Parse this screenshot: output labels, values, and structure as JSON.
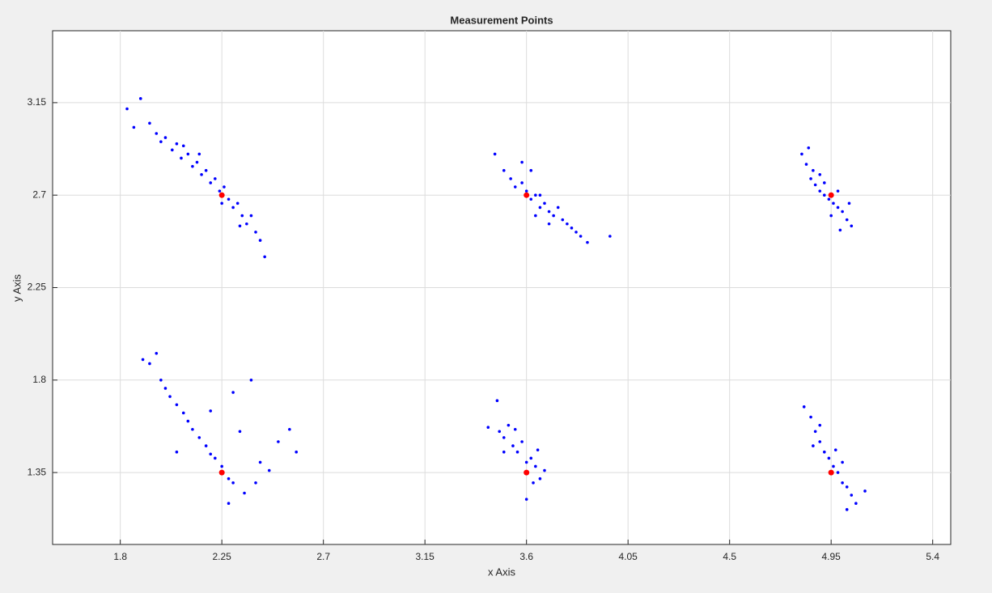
{
  "chart_data": {
    "type": "scatter",
    "title": "Measurement Points",
    "x_label": "x Axis",
    "y_label": "y Axis",
    "xlim": [
      1.5,
      5.48
    ],
    "ylim": [
      1.0,
      3.5
    ],
    "xticks": [
      1.8,
      2.25,
      2.7,
      3.15,
      3.6,
      4.05,
      4.5,
      4.95,
      5.4
    ],
    "yticks": [
      1.35,
      1.8,
      2.25,
      2.7,
      3.15
    ],
    "grid": true,
    "series": [
      {
        "color": "#0000ff",
        "marker_size": 1.8,
        "x": [
          1.83,
          1.86,
          1.89,
          1.93,
          1.96,
          1.98,
          2.0,
          2.03,
          2.05,
          2.07,
          2.1,
          2.12,
          2.14,
          2.16,
          2.18,
          2.2,
          2.22,
          2.24,
          2.26,
          2.28,
          2.3,
          2.32,
          2.34,
          2.36,
          2.38,
          2.4,
          2.42,
          2.44,
          2.08,
          2.15,
          2.25,
          2.33
        ],
        "values": [
          3.12,
          3.03,
          3.17,
          3.05,
          3.0,
          2.96,
          2.98,
          2.92,
          2.95,
          2.88,
          2.9,
          2.84,
          2.86,
          2.8,
          2.82,
          2.76,
          2.78,
          2.72,
          2.74,
          2.68,
          2.64,
          2.66,
          2.6,
          2.56,
          2.6,
          2.52,
          2.48,
          2.4,
          2.94,
          2.9,
          2.66,
          2.55
        ]
      },
      {
        "color": "#0000ff",
        "marker_size": 1.8,
        "x": [
          3.46,
          3.5,
          3.53,
          3.55,
          3.58,
          3.6,
          3.62,
          3.64,
          3.66,
          3.68,
          3.7,
          3.72,
          3.74,
          3.76,
          3.78,
          3.8,
          3.82,
          3.84,
          3.97,
          3.58,
          3.62,
          3.66,
          3.7,
          3.64,
          3.87
        ],
        "values": [
          2.9,
          2.82,
          2.78,
          2.74,
          2.76,
          2.72,
          2.68,
          2.7,
          2.64,
          2.66,
          2.62,
          2.6,
          2.64,
          2.58,
          2.56,
          2.54,
          2.52,
          2.5,
          2.5,
          2.86,
          2.82,
          2.7,
          2.56,
          2.6,
          2.47
        ]
      },
      {
        "color": "#0000ff",
        "marker_size": 1.8,
        "x": [
          4.82,
          4.85,
          4.84,
          4.87,
          4.86,
          4.88,
          4.9,
          4.9,
          4.92,
          4.94,
          4.96,
          4.98,
          5.0,
          5.02,
          5.04,
          4.95,
          4.92,
          4.98,
          5.03,
          4.99
        ],
        "values": [
          2.9,
          2.93,
          2.85,
          2.82,
          2.78,
          2.75,
          2.8,
          2.72,
          2.7,
          2.68,
          2.66,
          2.64,
          2.62,
          2.58,
          2.55,
          2.6,
          2.76,
          2.72,
          2.66,
          2.53
        ]
      },
      {
        "color": "#0000ff",
        "marker_size": 1.8,
        "x": [
          1.9,
          1.93,
          1.96,
          1.98,
          2.0,
          2.02,
          2.05,
          2.08,
          2.1,
          2.12,
          2.15,
          2.18,
          2.2,
          2.22,
          2.25,
          2.28,
          2.3,
          2.35,
          2.4,
          2.42,
          2.46,
          2.5,
          2.55,
          2.58,
          2.38,
          2.3,
          2.2,
          2.05,
          2.33,
          2.28
        ],
        "values": [
          1.9,
          1.88,
          1.93,
          1.8,
          1.76,
          1.72,
          1.68,
          1.64,
          1.6,
          1.56,
          1.52,
          1.48,
          1.44,
          1.42,
          1.38,
          1.32,
          1.3,
          1.25,
          1.3,
          1.4,
          1.36,
          1.5,
          1.56,
          1.45,
          1.8,
          1.74,
          1.65,
          1.45,
          1.55,
          1.2
        ]
      },
      {
        "color": "#0000ff",
        "marker_size": 1.8,
        "x": [
          3.43,
          3.47,
          3.48,
          3.5,
          3.52,
          3.54,
          3.56,
          3.58,
          3.6,
          3.62,
          3.64,
          3.66,
          3.68,
          3.6,
          3.63,
          3.55,
          3.65,
          3.5
        ],
        "values": [
          1.57,
          1.7,
          1.55,
          1.52,
          1.58,
          1.48,
          1.45,
          1.5,
          1.4,
          1.42,
          1.38,
          1.32,
          1.36,
          1.22,
          1.3,
          1.56,
          1.46,
          1.45
        ]
      },
      {
        "color": "#0000ff",
        "marker_size": 1.8,
        "x": [
          4.83,
          4.86,
          4.88,
          4.9,
          4.9,
          4.92,
          4.94,
          4.96,
          4.98,
          5.0,
          5.02,
          5.04,
          5.06,
          5.02,
          5.1,
          4.87,
          4.97,
          5.0
        ],
        "values": [
          1.67,
          1.62,
          1.55,
          1.5,
          1.58,
          1.45,
          1.42,
          1.38,
          1.35,
          1.3,
          1.28,
          1.24,
          1.2,
          1.17,
          1.26,
          1.48,
          1.46,
          1.4
        ]
      },
      {
        "color": "#ff0000",
        "marker_size": 3.5,
        "x": [
          2.25,
          3.6,
          4.95,
          2.25,
          3.6,
          4.95
        ],
        "values": [
          2.7,
          2.7,
          2.7,
          1.35,
          1.35,
          1.35
        ]
      }
    ]
  }
}
